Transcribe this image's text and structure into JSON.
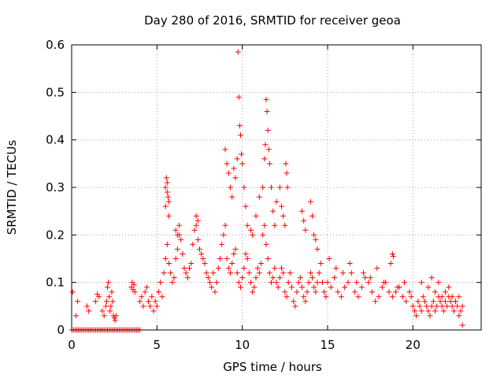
{
  "chart_data": {
    "type": "scatter",
    "title": "Day 280 of 2016, SRMTID for receiver geoa",
    "xlabel": "GPS time / hours",
    "ylabel": "SRMTID / TECUs",
    "xlim": [
      0,
      24
    ],
    "ylim": [
      0,
      0.6
    ],
    "xticks": [
      0,
      5,
      10,
      15,
      20
    ],
    "yticks": [
      0,
      0.1,
      0.2,
      0.3,
      0.4,
      0.5,
      0.6
    ],
    "grid": true,
    "legend": "none",
    "marker": "+",
    "color": "#ff0000",
    "series": [
      {
        "name": "geoa",
        "x": [
          0.0,
          0.1,
          0.2,
          0.3,
          0.4,
          0.5,
          0.6,
          0.7,
          0.8,
          0.9,
          1.0,
          1.1,
          1.2,
          1.3,
          1.4,
          1.5,
          1.6,
          1.7,
          1.8,
          1.9,
          2.0,
          2.1,
          2.2,
          2.3,
          2.4,
          2.5,
          2.6,
          2.7,
          2.8,
          2.9,
          3.0,
          3.1,
          3.2,
          3.3,
          3.4,
          3.5,
          3.6,
          3.7,
          3.8,
          3.9,
          4.0,
          0.05,
          0.25,
          0.35,
          0.9,
          1.0,
          1.4,
          1.5,
          1.6,
          1.8,
          1.9,
          2.0,
          2.05,
          2.1,
          2.15,
          2.2,
          2.25,
          2.3,
          2.35,
          2.4,
          2.45,
          2.5,
          2.55,
          2.6,
          3.5,
          3.55,
          3.6,
          3.65,
          3.7,
          4.0,
          4.1,
          4.2,
          4.3,
          4.4,
          4.5,
          4.6,
          4.7,
          4.8,
          4.9,
          5.0,
          5.1,
          5.2,
          5.3,
          5.4,
          5.5,
          5.6,
          5.7,
          5.8,
          5.9,
          6.0,
          6.1,
          6.2,
          6.3,
          6.4,
          6.5,
          6.6,
          6.7,
          6.8,
          6.9,
          7.0,
          7.1,
          7.2,
          7.3,
          7.4,
          7.5,
          7.6,
          7.7,
          7.8,
          7.9,
          5.5,
          5.55,
          5.6,
          5.65,
          5.7,
          5.5,
          5.6,
          5.7,
          6.1,
          6.2,
          6.3,
          7.3,
          7.4,
          8.0,
          8.1,
          8.2,
          8.3,
          8.4,
          8.5,
          8.6,
          8.7,
          8.8,
          8.9,
          9.0,
          9.1,
          9.2,
          9.3,
          9.4,
          9.5,
          9.6,
          9.7,
          9.8,
          9.9,
          10.0,
          10.1,
          10.2,
          10.3,
          10.4,
          10.5,
          10.6,
          10.7,
          10.8,
          10.9,
          11.0,
          11.1,
          11.2,
          11.3,
          11.4,
          11.5,
          11.6,
          11.7,
          11.8,
          11.9,
          9.0,
          9.1,
          9.2,
          9.3,
          9.4,
          9.5,
          9.6,
          9.7,
          9.75,
          9.8,
          9.85,
          9.9,
          9.95,
          10.0,
          10.1,
          10.2,
          10.3,
          10.5,
          10.6,
          10.8,
          11.0,
          11.2,
          11.3,
          11.35,
          11.4,
          11.45,
          11.5,
          11.55,
          11.6,
          11.7,
          11.8,
          11.9,
          12.0,
          12.1,
          12.2,
          12.3,
          12.4,
          12.5,
          12.6,
          12.7,
          12.8,
          12.9,
          13.0,
          13.1,
          13.2,
          13.3,
          13.4,
          13.5,
          13.6,
          13.7,
          13.8,
          13.9,
          14.0,
          14.1,
          14.2,
          14.3,
          14.4,
          14.5,
          14.6,
          14.7,
          14.8,
          14.9,
          12.0,
          12.2,
          12.3,
          12.4,
          12.5,
          12.55,
          12.6,
          12.65,
          13.5,
          13.6,
          13.7,
          14.0,
          14.1,
          14.2,
          14.3,
          14.4,
          15.0,
          15.2,
          15.4,
          15.6,
          15.8,
          16.0,
          16.2,
          16.4,
          16.6,
          16.8,
          17.0,
          17.2,
          17.4,
          17.6,
          17.8,
          18.0,
          18.2,
          18.4,
          18.6,
          18.8,
          19.0,
          19.2,
          19.4,
          19.6,
          19.8,
          15.1,
          15.5,
          15.9,
          16.3,
          16.7,
          17.1,
          17.5,
          17.9,
          18.3,
          18.7,
          18.8,
          18.85,
          19.1,
          19.5,
          19.9,
          20.0,
          20.1,
          20.2,
          20.3,
          20.4,
          20.5,
          20.6,
          20.7,
          20.8,
          20.9,
          21.0,
          21.1,
          21.2,
          21.3,
          21.4,
          21.5,
          21.6,
          21.7,
          21.8,
          21.9,
          22.0,
          22.1,
          22.2,
          22.3,
          22.4,
          22.5,
          22.6,
          22.7,
          22.8,
          22.9,
          20.5,
          20.9,
          21.1,
          21.3,
          21.5,
          21.7,
          21.9,
          22.1,
          22.3,
          22.5,
          22.7,
          22.9
        ],
        "y": [
          0.0,
          0.0,
          0.0,
          0.0,
          0.0,
          0.0,
          0.0,
          0.0,
          0.0,
          0.0,
          0.0,
          0.0,
          0.0,
          0.0,
          0.0,
          0.0,
          0.0,
          0.0,
          0.0,
          0.0,
          0.0,
          0.0,
          0.0,
          0.0,
          0.0,
          0.0,
          0.0,
          0.0,
          0.0,
          0.0,
          0.0,
          0.0,
          0.0,
          0.0,
          0.0,
          0.0,
          0.0,
          0.0,
          0.0,
          0.0,
          0.0,
          0.08,
          0.03,
          0.06,
          0.05,
          0.04,
          0.06,
          0.075,
          0.07,
          0.04,
          0.03,
          0.05,
          0.06,
          0.09,
          0.1,
          0.07,
          0.04,
          0.05,
          0.08,
          0.06,
          0.03,
          0.025,
          0.02,
          0.03,
          0.09,
          0.1,
          0.085,
          0.095,
          0.08,
          0.06,
          0.07,
          0.05,
          0.08,
          0.09,
          0.06,
          0.05,
          0.07,
          0.04,
          0.06,
          0.05,
          0.08,
          0.1,
          0.07,
          0.12,
          0.15,
          0.18,
          0.14,
          0.12,
          0.1,
          0.11,
          0.15,
          0.17,
          0.2,
          0.19,
          0.16,
          0.13,
          0.12,
          0.11,
          0.13,
          0.14,
          0.18,
          0.21,
          0.22,
          0.19,
          0.17,
          0.16,
          0.15,
          0.14,
          0.12,
          0.3,
          0.32,
          0.31,
          0.28,
          0.24,
          0.26,
          0.29,
          0.27,
          0.21,
          0.2,
          0.22,
          0.24,
          0.23,
          0.11,
          0.1,
          0.09,
          0.12,
          0.08,
          0.1,
          0.13,
          0.15,
          0.18,
          0.2,
          0.22,
          0.15,
          0.13,
          0.12,
          0.14,
          0.16,
          0.17,
          0.12,
          0.1,
          0.09,
          0.11,
          0.13,
          0.16,
          0.15,
          0.12,
          0.1,
          0.08,
          0.09,
          0.11,
          0.13,
          0.12,
          0.14,
          0.2,
          0.22,
          0.18,
          0.15,
          0.12,
          0.1,
          0.11,
          0.13,
          0.38,
          0.35,
          0.33,
          0.3,
          0.28,
          0.34,
          0.32,
          0.36,
          0.585,
          0.49,
          0.43,
          0.41,
          0.37,
          0.35,
          0.3,
          0.26,
          0.22,
          0.21,
          0.2,
          0.24,
          0.28,
          0.3,
          0.36,
          0.39,
          0.485,
          0.46,
          0.42,
          0.38,
          0.35,
          0.3,
          0.25,
          0.22,
          0.1,
          0.09,
          0.11,
          0.13,
          0.12,
          0.08,
          0.07,
          0.1,
          0.12,
          0.09,
          0.06,
          0.05,
          0.08,
          0.1,
          0.11,
          0.09,
          0.07,
          0.06,
          0.08,
          0.1,
          0.12,
          0.11,
          0.09,
          0.08,
          0.1,
          0.12,
          0.14,
          0.1,
          0.08,
          0.07,
          0.27,
          0.3,
          0.26,
          0.24,
          0.22,
          0.35,
          0.33,
          0.3,
          0.25,
          0.23,
          0.21,
          0.27,
          0.24,
          0.2,
          0.19,
          0.17,
          0.1,
          0.09,
          0.11,
          0.08,
          0.07,
          0.09,
          0.1,
          0.12,
          0.08,
          0.07,
          0.09,
          0.11,
          0.1,
          0.08,
          0.06,
          0.07,
          0.09,
          0.1,
          0.08,
          0.07,
          0.08,
          0.09,
          0.07,
          0.06,
          0.08,
          0.15,
          0.13,
          0.12,
          0.14,
          0.1,
          0.12,
          0.11,
          0.13,
          0.1,
          0.14,
          0.16,
          0.155,
          0.09,
          0.1,
          0.07,
          0.05,
          0.04,
          0.03,
          0.06,
          0.05,
          0.04,
          0.07,
          0.06,
          0.05,
          0.04,
          0.03,
          0.05,
          0.06,
          0.04,
          0.05,
          0.07,
          0.06,
          0.05,
          0.04,
          0.06,
          0.05,
          0.07,
          0.06,
          0.05,
          0.04,
          0.06,
          0.05,
          0.07,
          0.04,
          0.05,
          0.1,
          0.09,
          0.11,
          0.08,
          0.1,
          0.07,
          0.08,
          0.09,
          0.07,
          0.06,
          0.03,
          0.01
        ]
      }
    ]
  }
}
